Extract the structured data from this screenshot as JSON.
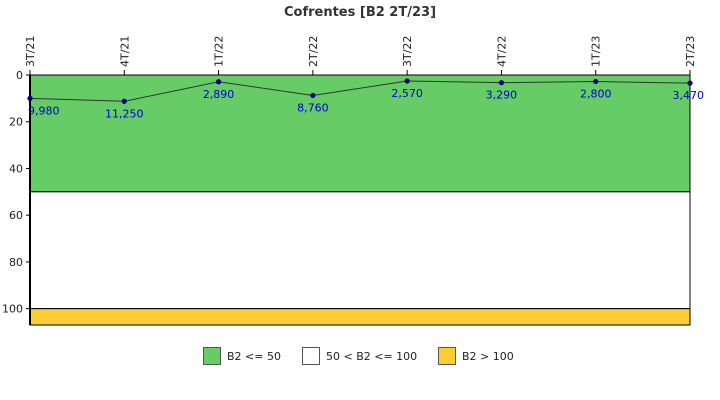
{
  "chart_data": {
    "type": "line",
    "title": "Cofrentes [B2 2T/23]",
    "x": [
      "3T/21",
      "4T/21",
      "1T/22",
      "2T/22",
      "3T/22",
      "4T/22",
      "1T/23",
      "2T/23"
    ],
    "series": [
      {
        "values": [
          9.98,
          11.25,
          2.89,
          8.76,
          2.57,
          3.29,
          2.8,
          3.47
        ],
        "labels": [
          "9,980",
          "11,250",
          "2,890",
          "8,760",
          "2,570",
          "3,290",
          "2,800",
          "3,470"
        ],
        "color": "#000080"
      }
    ],
    "yticks": [
      0,
      20,
      40,
      60,
      80,
      100
    ],
    "ylim": [
      0,
      107
    ],
    "y_inverted": true,
    "xlabel": "",
    "ylabel": "",
    "bands": [
      {
        "from": 0,
        "to": 50,
        "color": "#66cc66"
      },
      {
        "from": 50,
        "to": 100,
        "color": "#ffffff"
      },
      {
        "from": 100,
        "to": 107,
        "color": "#ffcc33"
      }
    ]
  },
  "legend": [
    {
      "label": "B2 <= 50",
      "color": "#66cc66"
    },
    {
      "label": "50 < B2 <= 100",
      "color": "#ffffff"
    },
    {
      "label": "B2 > 100",
      "color": "#ffcc33"
    }
  ]
}
